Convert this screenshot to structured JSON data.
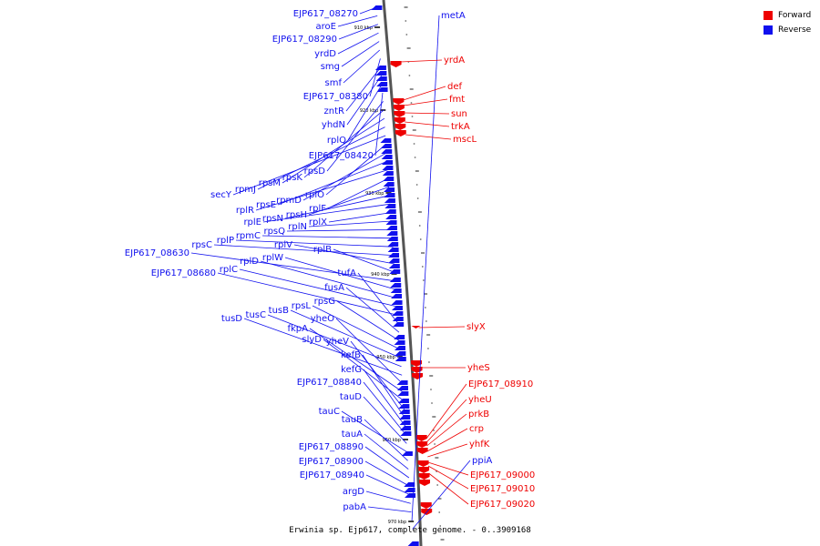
{
  "caption": "Erwinia sp. Ejp617, complete genome. - 0..3909168",
  "legend": {
    "forward": {
      "label": "Forward",
      "color": "#ee0000"
    },
    "reverse": {
      "label": "Reverse",
      "color": "#1010ee"
    }
  },
  "ticks": [
    "910 kbp",
    "920 kbp",
    "930 kbp",
    "940 kbp",
    "950 kbp",
    "960 kbp",
    "970 kbp"
  ],
  "genes_reverse": [
    "EJP617_08270",
    "aroE",
    "EJP617_08290",
    "yrdD",
    "smg",
    "smf",
    "EJP617_08380",
    "zntR",
    "yhdN",
    "rplQ",
    "EJP617_08420",
    "rpsD",
    "rpsK",
    "rpsM",
    "rpmJ",
    "secY",
    "rplO",
    "rpmD",
    "rpsE",
    "rplR",
    "rplF",
    "rpsH",
    "rpsN",
    "rplE",
    "rplX",
    "rplN",
    "rpsQ",
    "rpmC",
    "rplP",
    "rpsC",
    "rplV",
    "rplB",
    "EJP617_08630",
    "rplW",
    "rplD",
    "rplC",
    "EJP617_08680",
    "tufA",
    "fusA",
    "rpsG",
    "rpsL",
    "tusB",
    "tusC",
    "tusD",
    "yheO",
    "fkpA",
    "slyD",
    "yheV",
    "kefB",
    "kefG",
    "EJP617_08840",
    "tauD",
    "tauC",
    "tauB",
    "tauA",
    "EJP617_08890",
    "EJP617_08900",
    "EJP617_08940",
    "argD",
    "pabA",
    "metA",
    "ppiA"
  ],
  "genes_forward": [
    "yrdA",
    "def",
    "fmt",
    "sun",
    "trkA",
    "mscL",
    "slyX",
    "yheS",
    "EJP617_08910",
    "yheU",
    "prkB",
    "crp",
    "yhfK",
    "EJP617_09000",
    "EJP617_09010",
    "EJP617_09020"
  ]
}
